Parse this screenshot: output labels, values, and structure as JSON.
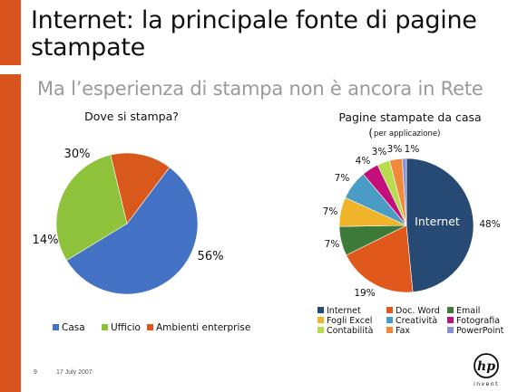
{
  "slide": {
    "title": "Internet: la principale fonte di pagine stampate",
    "subtitle": "Ma l’esperienza di stampa non è ancora in Rete",
    "page_number": "9",
    "date": "17 July 2007",
    "logo": "hp invent",
    "accent_color": "#d9531e"
  },
  "chart_data": [
    {
      "type": "pie",
      "title": "Dove si stampa?",
      "categories": [
        "Casa",
        "Ufficio",
        "Ambienti enterprise"
      ],
      "values": [
        56,
        30,
        14
      ],
      "labels": [
        "56%",
        "30%",
        "14%"
      ],
      "colors": [
        "#4472c4",
        "#8fc23b",
        "#d9581c"
      ],
      "legend": "bottom"
    },
    {
      "type": "pie",
      "title": "Pagine stampate da casa",
      "subtitle_prefix": "(",
      "subtitle": "per applicazione)",
      "categories": [
        "Internet",
        "Doc. Word",
        "Email",
        "Fogli Excel",
        "Creatività",
        "Fotografia",
        "Contabilità",
        "Fax",
        "PowerPoint"
      ],
      "values": [
        48,
        19,
        7,
        7,
        7,
        4,
        3,
        3,
        1
      ],
      "labels": [
        "48%",
        "19%",
        "7%",
        "7%",
        "7%",
        "4%",
        "3%",
        "3%",
        "1%"
      ],
      "inner_label": "Internet",
      "colors": [
        "#264a73",
        "#e0581c",
        "#3d7a3a",
        "#f0b42a",
        "#4a9cc4",
        "#c40e7a",
        "#b8dc50",
        "#f08a3a",
        "#8a8ed8"
      ],
      "legend": "bottom"
    }
  ]
}
